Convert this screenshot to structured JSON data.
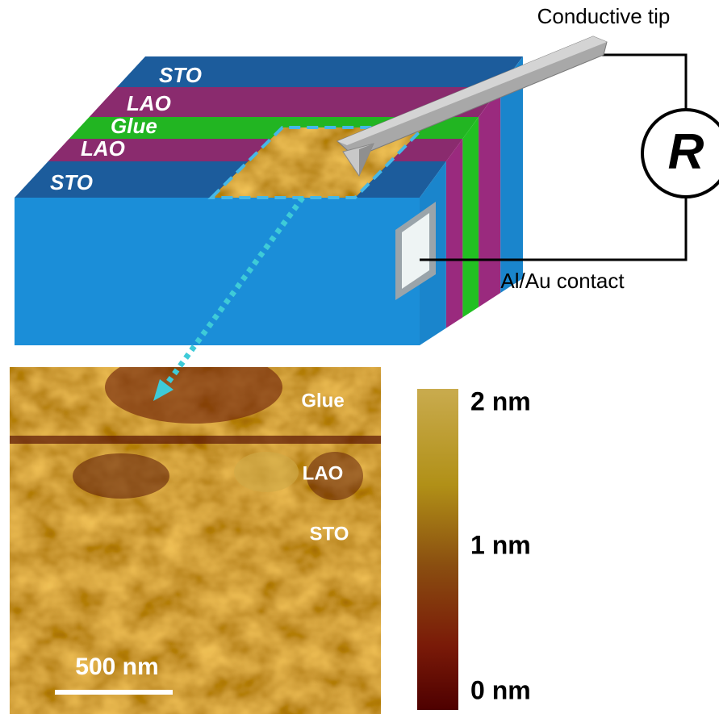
{
  "diagram": {
    "tip_label": "Conductive tip",
    "layers": [
      "STO",
      "LAO",
      "Glue",
      "LAO",
      "STO"
    ],
    "resistor": "R",
    "contact_label": "Al/Au contact"
  },
  "afm_image": {
    "labels": [
      "Glue",
      "LAO",
      "STO"
    ],
    "scale_bar": "500 nm"
  },
  "colorbar": {
    "labels": [
      "2 nm",
      "1 nm",
      "0 nm"
    ]
  }
}
